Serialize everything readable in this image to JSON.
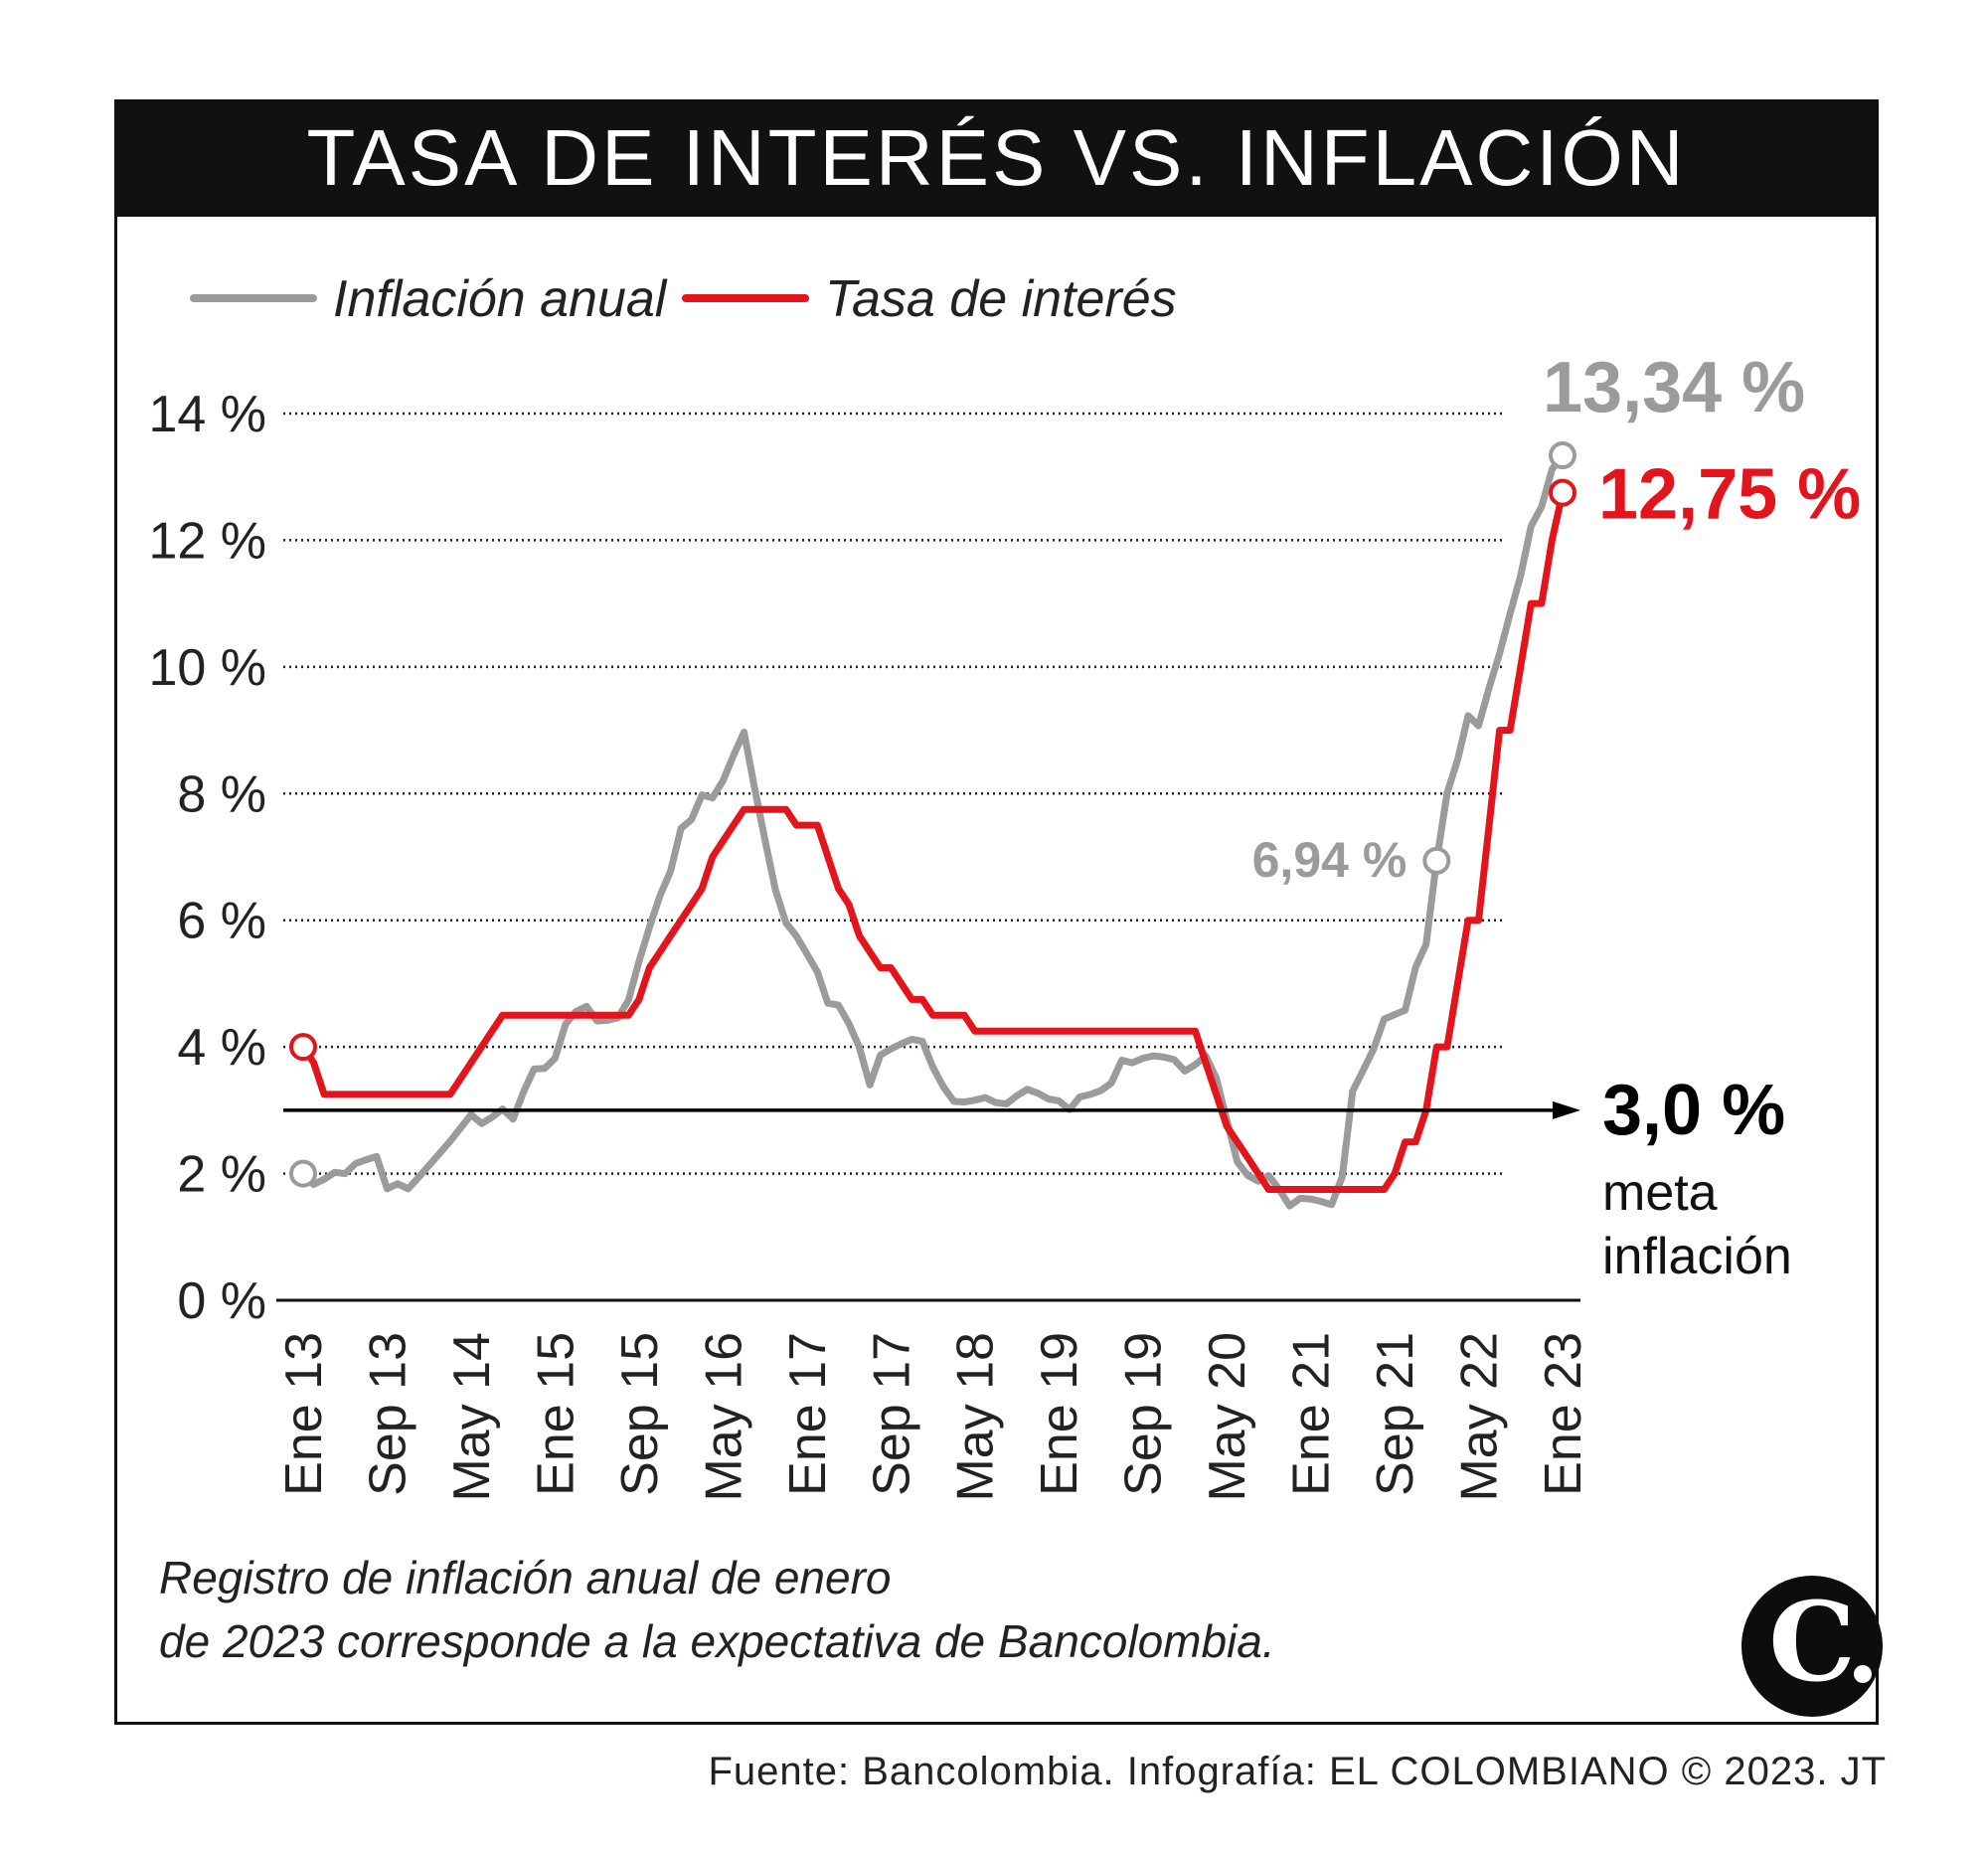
{
  "header": {
    "title": "TASA DE INTERÉS VS. INFLACIÓN"
  },
  "colors": {
    "inflation": "#9b9b9b",
    "interest": "#e3141b",
    "target": "#000000"
  },
  "chart_data": {
    "type": "line",
    "title": "TASA DE INTERÉS VS. INFLACIÓN",
    "xlabel": "",
    "ylabel": "",
    "ylim": [
      0,
      14
    ],
    "yticks": [
      0,
      2,
      4,
      6,
      8,
      10,
      12,
      14
    ],
    "ytick_labels": [
      "0 %",
      "2 %",
      "4 %",
      "6 %",
      "8 %",
      "10 %",
      "12 %",
      "14 %"
    ],
    "xtick_labels": [
      "Ene 13",
      "Sep 13",
      "May 14",
      "Ene 15",
      "Sep 15",
      "May 16",
      "Ene 17",
      "Sep 17",
      "May 18",
      "Ene 19",
      "Sep 19",
      "May 20",
      "Ene 21",
      "Sep 21",
      "May 22",
      "Ene 23"
    ],
    "x_range": [
      "2013-01",
      "2023-01"
    ],
    "grid": "horizontal dotted",
    "legend_position": "top-left",
    "series": [
      {
        "name": "Inflación anual",
        "color": "#9b9b9b",
        "points": [
          [
            "2013-01",
            2.0
          ],
          [
            "2013-02",
            1.83
          ],
          [
            "2013-03",
            1.91
          ],
          [
            "2013-04",
            2.02
          ],
          [
            "2013-05",
            2.0
          ],
          [
            "2013-06",
            2.16
          ],
          [
            "2013-07",
            2.22
          ],
          [
            "2013-08",
            2.27
          ],
          [
            "2013-09",
            1.76
          ],
          [
            "2013-10",
            1.84
          ],
          [
            "2013-11",
            1.76
          ],
          [
            "2013-12",
            1.94
          ],
          [
            "2014-01",
            2.13
          ],
          [
            "2014-02",
            2.32
          ],
          [
            "2014-03",
            2.51
          ],
          [
            "2014-04",
            2.72
          ],
          [
            "2014-05",
            2.93
          ],
          [
            "2014-06",
            2.79
          ],
          [
            "2014-07",
            2.89
          ],
          [
            "2014-08",
            3.02
          ],
          [
            "2014-09",
            2.86
          ],
          [
            "2014-10",
            3.29
          ],
          [
            "2014-11",
            3.65
          ],
          [
            "2014-12",
            3.66
          ],
          [
            "2015-01",
            3.82
          ],
          [
            "2015-02",
            4.36
          ],
          [
            "2015-03",
            4.56
          ],
          [
            "2015-04",
            4.64
          ],
          [
            "2015-05",
            4.41
          ],
          [
            "2015-06",
            4.42
          ],
          [
            "2015-07",
            4.46
          ],
          [
            "2015-08",
            4.74
          ],
          [
            "2015-09",
            5.35
          ],
          [
            "2015-10",
            5.89
          ],
          [
            "2015-11",
            6.39
          ],
          [
            "2015-12",
            6.77
          ],
          [
            "2016-01",
            7.45
          ],
          [
            "2016-02",
            7.59
          ],
          [
            "2016-03",
            7.98
          ],
          [
            "2016-04",
            7.93
          ],
          [
            "2016-05",
            8.2
          ],
          [
            "2016-06",
            8.6
          ],
          [
            "2016-07",
            8.97
          ],
          [
            "2016-08",
            8.1
          ],
          [
            "2016-09",
            7.27
          ],
          [
            "2016-10",
            6.48
          ],
          [
            "2016-11",
            5.96
          ],
          [
            "2016-12",
            5.75
          ],
          [
            "2017-01",
            5.47
          ],
          [
            "2017-02",
            5.18
          ],
          [
            "2017-03",
            4.69
          ],
          [
            "2017-04",
            4.66
          ],
          [
            "2017-05",
            4.37
          ],
          [
            "2017-06",
            3.99
          ],
          [
            "2017-07",
            3.4
          ],
          [
            "2017-08",
            3.87
          ],
          [
            "2017-09",
            3.97
          ],
          [
            "2017-10",
            4.05
          ],
          [
            "2017-11",
            4.12
          ],
          [
            "2017-12",
            4.09
          ],
          [
            "2018-01",
            3.68
          ],
          [
            "2018-02",
            3.37
          ],
          [
            "2018-03",
            3.14
          ],
          [
            "2018-04",
            3.13
          ],
          [
            "2018-05",
            3.16
          ],
          [
            "2018-06",
            3.2
          ],
          [
            "2018-07",
            3.12
          ],
          [
            "2018-08",
            3.1
          ],
          [
            "2018-09",
            3.23
          ],
          [
            "2018-10",
            3.33
          ],
          [
            "2018-11",
            3.27
          ],
          [
            "2018-12",
            3.18
          ],
          [
            "2019-01",
            3.15
          ],
          [
            "2019-02",
            3.01
          ],
          [
            "2019-03",
            3.21
          ],
          [
            "2019-04",
            3.25
          ],
          [
            "2019-05",
            3.31
          ],
          [
            "2019-06",
            3.43
          ],
          [
            "2019-07",
            3.79
          ],
          [
            "2019-08",
            3.75
          ],
          [
            "2019-09",
            3.82
          ],
          [
            "2019-10",
            3.86
          ],
          [
            "2019-11",
            3.84
          ],
          [
            "2019-12",
            3.8
          ],
          [
            "2020-01",
            3.62
          ],
          [
            "2020-02",
            3.72
          ],
          [
            "2020-03",
            3.86
          ],
          [
            "2020-04",
            3.51
          ],
          [
            "2020-05",
            2.85
          ],
          [
            "2020-06",
            2.19
          ],
          [
            "2020-07",
            1.97
          ],
          [
            "2020-08",
            1.88
          ],
          [
            "2020-09",
            1.97
          ],
          [
            "2020-10",
            1.75
          ],
          [
            "2020-11",
            1.49
          ],
          [
            "2020-12",
            1.61
          ],
          [
            "2021-01",
            1.6
          ],
          [
            "2021-02",
            1.56
          ],
          [
            "2021-03",
            1.51
          ],
          [
            "2021-04",
            1.95
          ],
          [
            "2021-05",
            3.3
          ],
          [
            "2021-06",
            3.63
          ],
          [
            "2021-07",
            3.97
          ],
          [
            "2021-08",
            4.44
          ],
          [
            "2021-09",
            4.51
          ],
          [
            "2021-10",
            4.58
          ],
          [
            "2021-11",
            5.26
          ],
          [
            "2021-12",
            5.62
          ],
          [
            "2022-01",
            6.94
          ],
          [
            "2022-02",
            8.01
          ],
          [
            "2022-03",
            8.53
          ],
          [
            "2022-04",
            9.23
          ],
          [
            "2022-05",
            9.07
          ],
          [
            "2022-06",
            9.67
          ],
          [
            "2022-07",
            10.21
          ],
          [
            "2022-08",
            10.84
          ],
          [
            "2022-09",
            11.44
          ],
          [
            "2022-10",
            12.22
          ],
          [
            "2022-11",
            12.53
          ],
          [
            "2022-12",
            13.12
          ],
          [
            "2023-01",
            13.34
          ]
        ]
      },
      {
        "name": "Tasa de interés",
        "color": "#e3141b",
        "points": [
          [
            "2013-01",
            4.0
          ],
          [
            "2013-02",
            3.75
          ],
          [
            "2013-03",
            3.25
          ],
          [
            "2013-04",
            3.25
          ],
          [
            "2013-05",
            3.25
          ],
          [
            "2013-06",
            3.25
          ],
          [
            "2013-07",
            3.25
          ],
          [
            "2013-08",
            3.25
          ],
          [
            "2013-09",
            3.25
          ],
          [
            "2013-10",
            3.25
          ],
          [
            "2013-11",
            3.25
          ],
          [
            "2013-12",
            3.25
          ],
          [
            "2014-01",
            3.25
          ],
          [
            "2014-02",
            3.25
          ],
          [
            "2014-03",
            3.25
          ],
          [
            "2014-04",
            3.5
          ],
          [
            "2014-05",
            3.75
          ],
          [
            "2014-06",
            4.0
          ],
          [
            "2014-07",
            4.25
          ],
          [
            "2014-08",
            4.5
          ],
          [
            "2014-09",
            4.5
          ],
          [
            "2014-10",
            4.5
          ],
          [
            "2014-11",
            4.5
          ],
          [
            "2014-12",
            4.5
          ],
          [
            "2015-01",
            4.5
          ],
          [
            "2015-02",
            4.5
          ],
          [
            "2015-03",
            4.5
          ],
          [
            "2015-04",
            4.5
          ],
          [
            "2015-05",
            4.5
          ],
          [
            "2015-06",
            4.5
          ],
          [
            "2015-07",
            4.5
          ],
          [
            "2015-08",
            4.5
          ],
          [
            "2015-09",
            4.75
          ],
          [
            "2015-10",
            5.25
          ],
          [
            "2015-11",
            5.5
          ],
          [
            "2015-12",
            5.75
          ],
          [
            "2016-01",
            6.0
          ],
          [
            "2016-02",
            6.25
          ],
          [
            "2016-03",
            6.5
          ],
          [
            "2016-04",
            7.0
          ],
          [
            "2016-05",
            7.25
          ],
          [
            "2016-06",
            7.5
          ],
          [
            "2016-07",
            7.75
          ],
          [
            "2016-08",
            7.75
          ],
          [
            "2016-09",
            7.75
          ],
          [
            "2016-10",
            7.75
          ],
          [
            "2016-11",
            7.75
          ],
          [
            "2016-12",
            7.5
          ],
          [
            "2017-01",
            7.5
          ],
          [
            "2017-02",
            7.5
          ],
          [
            "2017-03",
            7.0
          ],
          [
            "2017-04",
            6.5
          ],
          [
            "2017-05",
            6.25
          ],
          [
            "2017-06",
            5.75
          ],
          [
            "2017-07",
            5.5
          ],
          [
            "2017-08",
            5.25
          ],
          [
            "2017-09",
            5.25
          ],
          [
            "2017-10",
            5.0
          ],
          [
            "2017-11",
            4.75
          ],
          [
            "2017-12",
            4.75
          ],
          [
            "2018-01",
            4.5
          ],
          [
            "2018-02",
            4.5
          ],
          [
            "2018-03",
            4.5
          ],
          [
            "2018-04",
            4.5
          ],
          [
            "2018-05",
            4.25
          ],
          [
            "2018-06",
            4.25
          ],
          [
            "2018-07",
            4.25
          ],
          [
            "2018-08",
            4.25
          ],
          [
            "2018-09",
            4.25
          ],
          [
            "2018-10",
            4.25
          ],
          [
            "2018-11",
            4.25
          ],
          [
            "2018-12",
            4.25
          ],
          [
            "2019-01",
            4.25
          ],
          [
            "2019-02",
            4.25
          ],
          [
            "2019-03",
            4.25
          ],
          [
            "2019-04",
            4.25
          ],
          [
            "2019-05",
            4.25
          ],
          [
            "2019-06",
            4.25
          ],
          [
            "2019-07",
            4.25
          ],
          [
            "2019-08",
            4.25
          ],
          [
            "2019-09",
            4.25
          ],
          [
            "2019-10",
            4.25
          ],
          [
            "2019-11",
            4.25
          ],
          [
            "2019-12",
            4.25
          ],
          [
            "2020-01",
            4.25
          ],
          [
            "2020-02",
            4.25
          ],
          [
            "2020-03",
            3.75
          ],
          [
            "2020-04",
            3.25
          ],
          [
            "2020-05",
            2.75
          ],
          [
            "2020-06",
            2.5
          ],
          [
            "2020-07",
            2.25
          ],
          [
            "2020-08",
            2.0
          ],
          [
            "2020-09",
            1.75
          ],
          [
            "2020-10",
            1.75
          ],
          [
            "2020-11",
            1.75
          ],
          [
            "2020-12",
            1.75
          ],
          [
            "2021-01",
            1.75
          ],
          [
            "2021-02",
            1.75
          ],
          [
            "2021-03",
            1.75
          ],
          [
            "2021-04",
            1.75
          ],
          [
            "2021-05",
            1.75
          ],
          [
            "2021-06",
            1.75
          ],
          [
            "2021-07",
            1.75
          ],
          [
            "2021-08",
            1.75
          ],
          [
            "2021-09",
            2.0
          ],
          [
            "2021-10",
            2.5
          ],
          [
            "2021-11",
            2.5
          ],
          [
            "2021-12",
            3.0
          ],
          [
            "2022-01",
            4.0
          ],
          [
            "2022-02",
            4.0
          ],
          [
            "2022-03",
            5.0
          ],
          [
            "2022-04",
            6.0
          ],
          [
            "2022-05",
            6.0
          ],
          [
            "2022-06",
            7.5
          ],
          [
            "2022-07",
            9.0
          ],
          [
            "2022-08",
            9.0
          ],
          [
            "2022-09",
            10.0
          ],
          [
            "2022-10",
            11.0
          ],
          [
            "2022-11",
            11.0
          ],
          [
            "2022-12",
            12.0
          ],
          [
            "2023-01",
            12.75
          ]
        ]
      }
    ],
    "reference_line": {
      "value": 3.0,
      "label_value": "3,0 %",
      "label_lines": [
        "meta",
        "inflación"
      ]
    },
    "annotations": [
      {
        "series": "Inflación anual",
        "x": "2023-01",
        "y": 13.34,
        "text": "13,34 %"
      },
      {
        "series": "Tasa de interés",
        "x": "2023-01",
        "y": 12.75,
        "text": "12,75 %"
      },
      {
        "series": "Inflación anual",
        "x": "2022-01",
        "y": 6.94,
        "text": "6,94 %"
      }
    ],
    "markers": [
      {
        "series": "Inflación anual",
        "x": "2013-01",
        "y": 2.0
      },
      {
        "series": "Tasa de interés",
        "x": "2013-01",
        "y": 4.0
      },
      {
        "series": "Inflación anual",
        "x": "2022-01",
        "y": 6.94
      },
      {
        "series": "Inflación anual",
        "x": "2023-01",
        "y": 13.34
      },
      {
        "series": "Tasa de interés",
        "x": "2023-01",
        "y": 12.75
      }
    ]
  },
  "footnote": {
    "line1": "Registro de inflación anual de enero",
    "line2": "de 2023 corresponde a la expectativa de Bancolombia."
  },
  "source": "Fuente: Bancolombia. Infografía: EL COLOMBIANO © 2023. JT",
  "logo": {
    "icon": "el-colombiano-logo-icon"
  }
}
